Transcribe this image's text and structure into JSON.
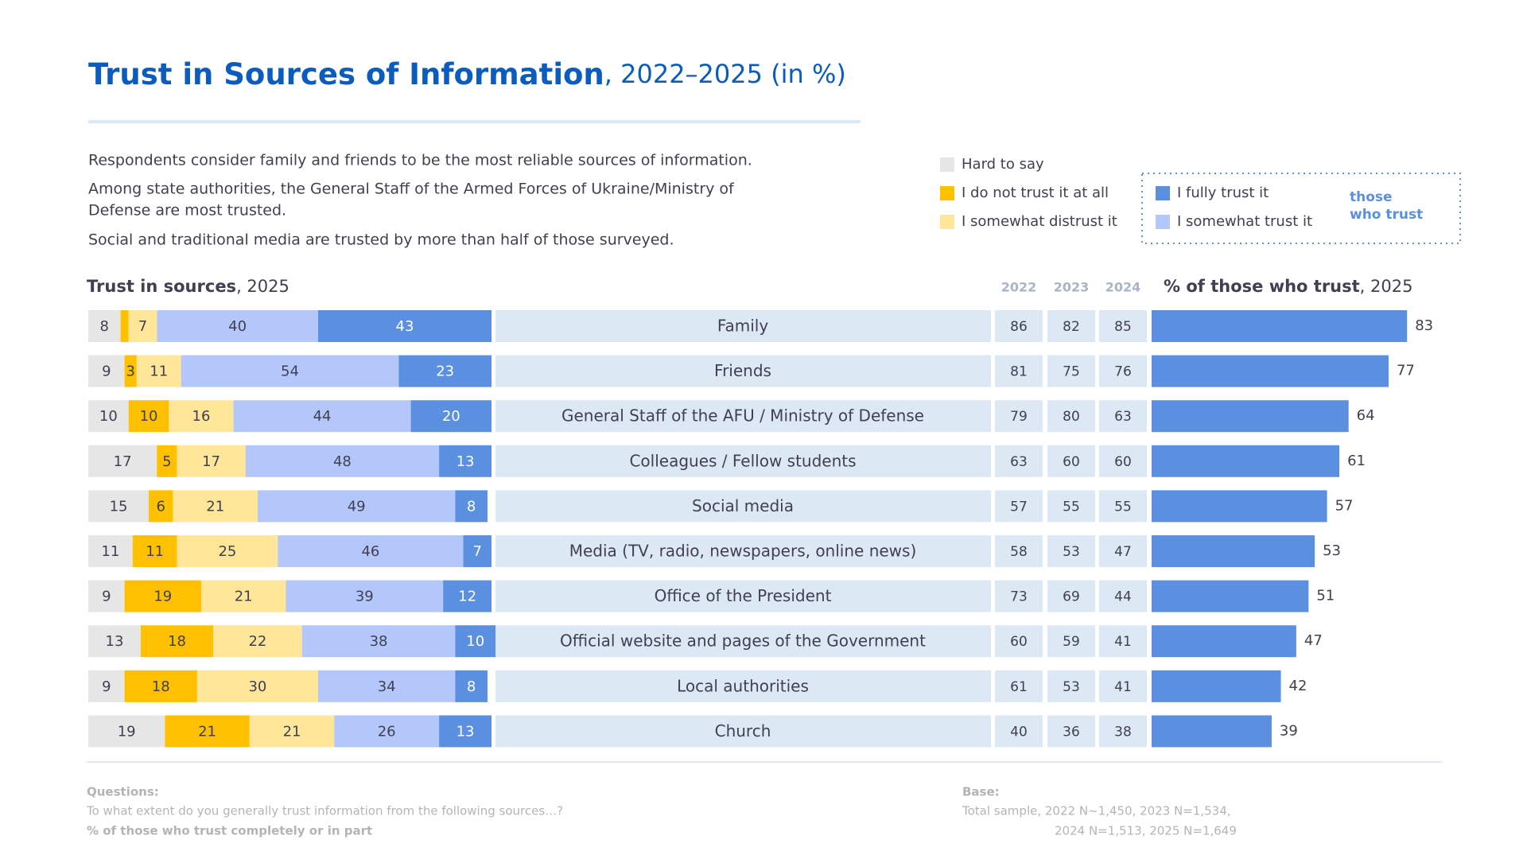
{
  "title": "Trust in Sources of Information",
  "title_suffix": ", 2022–2025 (in %)",
  "intro": [
    "Respondents consider family and friends to be the most reliable sources of information.",
    "Among state authorities, the General Staff of the Armed Forces of Ukraine/Ministry of",
    "Defense are most trusted.",
    "Social and traditional media are trusted by more than half of those surveyed."
  ],
  "legend_note": [
    "those",
    "who trust"
  ],
  "chart_data": [
    {
      "type": "stacked_bar",
      "title": "Trust in sources",
      "title_suffix": ", 2025",
      "categories": [
        "Family",
        "Friends",
        "General Staff of the AFU / Ministry of Defense",
        "Colleagues / Fellow students",
        "Social media",
        "Media (TV, radio, newspapers, online news)",
        "Office of the President",
        "Official website and pages of the Government",
        "Local authorities",
        "Church"
      ],
      "xlim": [
        0,
        100
      ],
      "series": [
        {
          "name": "Hard to say",
          "color": "#e6e6e6",
          "values": [
            8,
            9,
            10,
            17,
            15,
            11,
            9,
            13,
            9,
            19
          ]
        },
        {
          "name": "I do not trust it at all",
          "color": "#ffc000",
          "values": [
            2,
            3,
            10,
            5,
            6,
            11,
            19,
            18,
            18,
            21
          ]
        },
        {
          "name": "I somewhat distrust it",
          "color": "#ffe699",
          "values": [
            7,
            11,
            16,
            17,
            21,
            25,
            21,
            22,
            30,
            21
          ]
        },
        {
          "name": "I somewhat trust it",
          "color": "#b4c7fa",
          "values": [
            40,
            54,
            44,
            48,
            49,
            46,
            39,
            38,
            34,
            26
          ]
        },
        {
          "name": "I fully trust it",
          "color": "#5b8fe0",
          "values": [
            43,
            23,
            20,
            13,
            8,
            7,
            12,
            10,
            8,
            13
          ]
        }
      ]
    },
    {
      "type": "bar",
      "title": "% of those who trust",
      "title_suffix": ", 2025",
      "color": "#5b8fe0",
      "xlim": [
        0,
        100
      ],
      "values": [
        83,
        77,
        64,
        61,
        57,
        53,
        51,
        47,
        42,
        39
      ]
    }
  ],
  "history": {
    "columns": [
      "2022",
      "2023",
      "2024"
    ],
    "rows": [
      [
        86,
        82,
        85
      ],
      [
        81,
        75,
        76
      ],
      [
        79,
        80,
        63
      ],
      [
        63,
        60,
        60
      ],
      [
        57,
        55,
        55
      ],
      [
        58,
        53,
        47
      ],
      [
        73,
        69,
        44
      ],
      [
        60,
        59,
        41
      ],
      [
        61,
        53,
        41
      ],
      [
        40,
        36,
        38
      ]
    ]
  },
  "footer": {
    "questions_label": "Questions:",
    "question": "To what extent do you generally trust information from the following sources…?",
    "note": "% of those who trust completely or in part",
    "base_label": "Base:",
    "base_lines": [
      "Total sample, 2022  N~1,450, 2023  N=1,534,",
      "2024 N=1,513,  2025  N=1,649"
    ]
  }
}
